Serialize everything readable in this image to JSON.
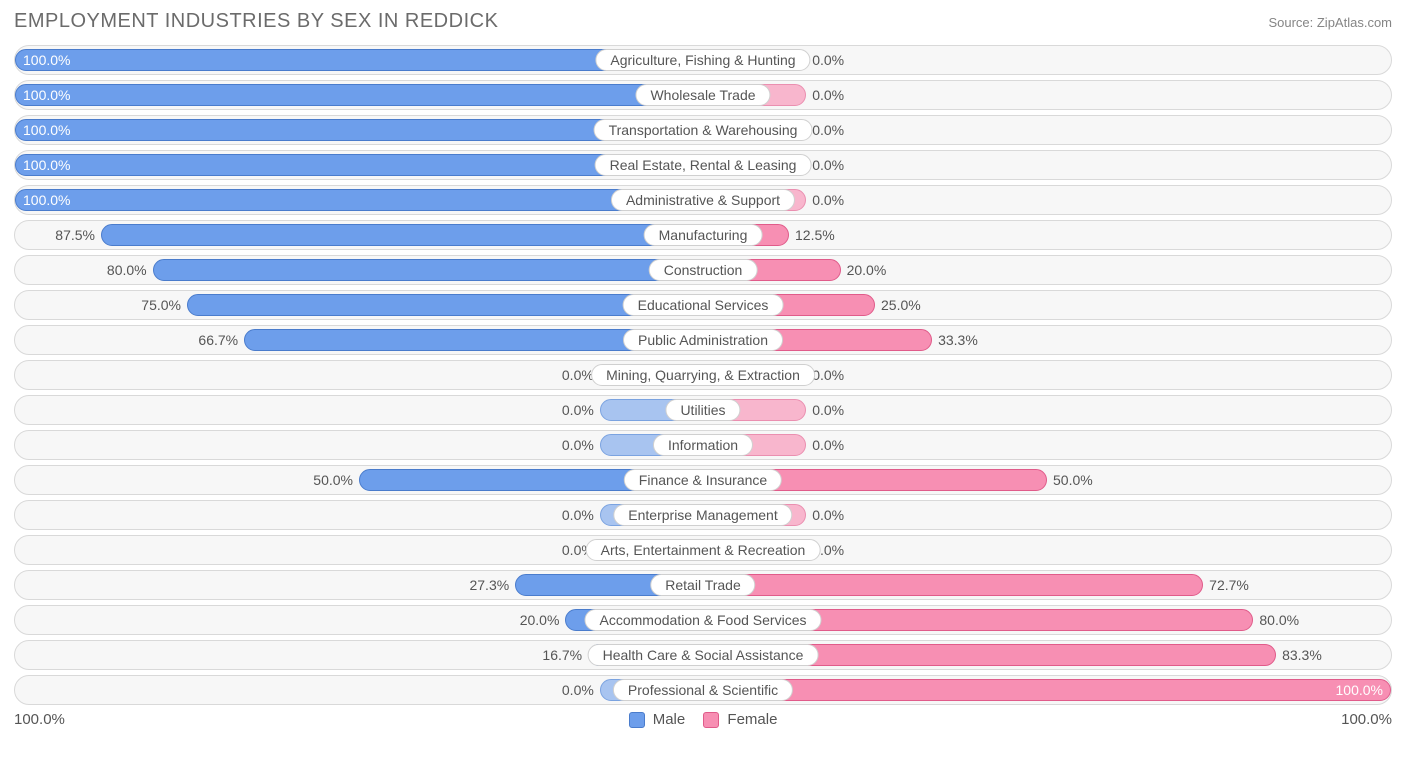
{
  "title": "EMPLOYMENT INDUSTRIES BY SEX IN REDDICK",
  "source": "Source: ZipAtlas.com",
  "axis": {
    "left_label": "100.0%",
    "right_label": "100.0%"
  },
  "legend": {
    "male": "Male",
    "female": "Female"
  },
  "colors": {
    "male_fill": "#6d9eeb",
    "male_border": "#4a7ccc",
    "male_light_fill": "#a8c4f0",
    "male_light_border": "#7ba3e0",
    "female_fill": "#f78fb3",
    "female_border": "#e05b8a",
    "female_light_fill": "#f8b6cd",
    "female_light_border": "#ea8fb0",
    "row_bg": "#f7f7f7",
    "row_border": "#d9d9d9",
    "text": "#555555",
    "title_text": "#6b6b6b",
    "source_text": "#858585",
    "label_bg": "#ffffff",
    "label_border": "#d0d0d0"
  },
  "min_bar_pct": 15,
  "rows": [
    {
      "label": "Agriculture, Fishing & Hunting",
      "male": 100.0,
      "female": 0.0
    },
    {
      "label": "Wholesale Trade",
      "male": 100.0,
      "female": 0.0
    },
    {
      "label": "Transportation & Warehousing",
      "male": 100.0,
      "female": 0.0
    },
    {
      "label": "Real Estate, Rental & Leasing",
      "male": 100.0,
      "female": 0.0
    },
    {
      "label": "Administrative & Support",
      "male": 100.0,
      "female": 0.0
    },
    {
      "label": "Manufacturing",
      "male": 87.5,
      "female": 12.5
    },
    {
      "label": "Construction",
      "male": 80.0,
      "female": 20.0
    },
    {
      "label": "Educational Services",
      "male": 75.0,
      "female": 25.0
    },
    {
      "label": "Public Administration",
      "male": 66.7,
      "female": 33.3
    },
    {
      "label": "Mining, Quarrying, & Extraction",
      "male": 0.0,
      "female": 0.0
    },
    {
      "label": "Utilities",
      "male": 0.0,
      "female": 0.0
    },
    {
      "label": "Information",
      "male": 0.0,
      "female": 0.0
    },
    {
      "label": "Finance & Insurance",
      "male": 50.0,
      "female": 50.0
    },
    {
      "label": "Enterprise Management",
      "male": 0.0,
      "female": 0.0
    },
    {
      "label": "Arts, Entertainment & Recreation",
      "male": 0.0,
      "female": 0.0
    },
    {
      "label": "Retail Trade",
      "male": 27.3,
      "female": 72.7
    },
    {
      "label": "Accommodation & Food Services",
      "male": 20.0,
      "female": 80.0
    },
    {
      "label": "Health Care & Social Assistance",
      "male": 16.7,
      "female": 83.3
    },
    {
      "label": "Professional & Scientific",
      "male": 0.0,
      "female": 100.0
    }
  ]
}
